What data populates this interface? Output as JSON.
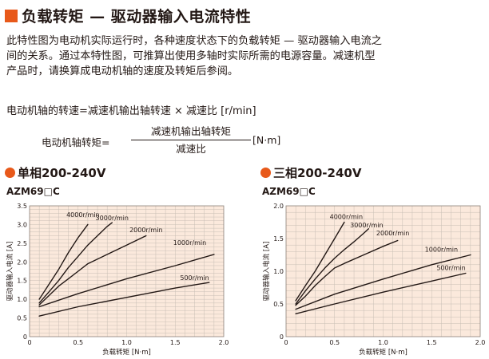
{
  "header": {
    "title": "负载转矩 — 驱动器输入电流特性"
  },
  "intro": {
    "text": "此特性图为电动机实际运行时，各种速度状态下的负载转矩 — 驱动器输入电流之间的关系。通过本特性图，可推算出使用多轴时实际所需的电源容量。减速机型产品时，请换算成电动机轴的速度及转矩后参阅。"
  },
  "formulas": {
    "speed": "电动机轴的转速=减速机输出轴转速 × 减速比 [r/min]",
    "torque_label": "电动机轴转矩=",
    "torque_numerator": "减速机输出轴转矩",
    "torque_denominator": "减速比",
    "torque_unit": "[N·m]"
  },
  "colors": {
    "accent": "#e8591a",
    "plot_bg": "#fbe9dc",
    "grid": "#c8beb5",
    "line": "#231815"
  },
  "sections": [
    {
      "heading": "单相200-240V",
      "model": "AZM69□C"
    },
    {
      "heading": "三相200-240V",
      "model": "AZM69□C"
    }
  ],
  "chart_data": [
    {
      "type": "line",
      "xlabel": "负载转矩 [N·m]",
      "ylabel": "驱动器输入电流 [A]",
      "xlim": [
        0,
        2.0
      ],
      "ylim": [
        0,
        3.5
      ],
      "xticks": [
        "0",
        "0.5",
        "1.0",
        "1.5",
        "2.0"
      ],
      "yticks": [
        "0",
        "0.5",
        "1.0",
        "1.5",
        "2.0",
        "2.5",
        "3.0",
        "3.5"
      ],
      "grid": true,
      "series": [
        {
          "name": "4000r/min",
          "x": [
            0.1,
            0.2,
            0.3,
            0.4,
            0.5,
            0.6
          ],
          "y": [
            1.0,
            1.4,
            1.8,
            2.25,
            2.65,
            3.0
          ]
        },
        {
          "name": "3000r/min",
          "x": [
            0.1,
            0.2,
            0.3,
            0.4,
            0.5,
            0.6,
            0.7,
            0.8,
            0.85
          ],
          "y": [
            0.9,
            1.2,
            1.5,
            1.85,
            2.15,
            2.45,
            2.7,
            2.95,
            3.05
          ]
        },
        {
          "name": "2000r/min",
          "x": [
            0.1,
            0.2,
            0.3,
            0.4,
            0.5,
            0.6,
            0.8,
            1.0,
            1.2
          ],
          "y": [
            0.85,
            1.1,
            1.35,
            1.55,
            1.75,
            1.95,
            2.2,
            2.45,
            2.7
          ]
        },
        {
          "name": "1000r/min",
          "x": [
            0.1,
            0.5,
            1.0,
            1.5,
            1.9
          ],
          "y": [
            0.8,
            1.15,
            1.55,
            1.9,
            2.2
          ]
        },
        {
          "name": "500r/min",
          "x": [
            0.1,
            0.5,
            1.0,
            1.5,
            1.85
          ],
          "y": [
            0.55,
            0.8,
            1.05,
            1.3,
            1.45
          ]
        }
      ]
    },
    {
      "type": "line",
      "xlabel": "负载转矩 [N·m]",
      "ylabel": "驱动器输入电流 [A]",
      "xlim": [
        0,
        2.0
      ],
      "ylim": [
        0,
        2.0
      ],
      "xticks": [
        "0",
        "0.5",
        "1.0",
        "1.5",
        "2.0"
      ],
      "yticks": [
        "0",
        "0.5",
        "1.0",
        "1.5",
        "2.0"
      ],
      "grid": true,
      "series": [
        {
          "name": "4000r/min",
          "x": [
            0.1,
            0.2,
            0.3,
            0.4,
            0.5,
            0.6
          ],
          "y": [
            0.55,
            0.78,
            1.0,
            1.25,
            1.5,
            1.75
          ]
        },
        {
          "name": "3000r/min",
          "x": [
            0.1,
            0.2,
            0.3,
            0.4,
            0.5,
            0.6,
            0.7,
            0.8,
            0.85
          ],
          "y": [
            0.5,
            0.7,
            0.88,
            1.05,
            1.2,
            1.33,
            1.45,
            1.58,
            1.65
          ]
        },
        {
          "name": "2000r/min",
          "x": [
            0.1,
            0.2,
            0.3,
            0.4,
            0.5,
            0.6,
            0.8,
            1.0,
            1.15
          ],
          "y": [
            0.48,
            0.62,
            0.78,
            0.92,
            1.05,
            1.12,
            1.25,
            1.38,
            1.47
          ]
        },
        {
          "name": "1000r/min",
          "x": [
            0.1,
            0.5,
            1.0,
            1.5,
            1.9
          ],
          "y": [
            0.42,
            0.65,
            0.88,
            1.1,
            1.25
          ]
        },
        {
          "name": "500r/min",
          "x": [
            0.1,
            0.5,
            1.0,
            1.5,
            1.85
          ],
          "y": [
            0.35,
            0.5,
            0.68,
            0.85,
            0.97
          ]
        }
      ]
    }
  ]
}
